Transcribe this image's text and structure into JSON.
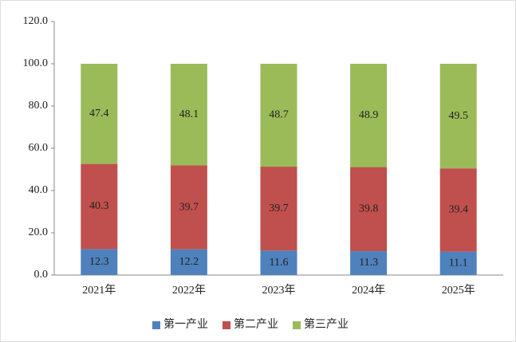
{
  "chart_data": {
    "type": "stacked-bar",
    "categories": [
      "2021年",
      "2022年",
      "2023年",
      "2024年",
      "2025年"
    ],
    "series": [
      {
        "name": "第一产业",
        "color": "#4f81bd",
        "values": [
          12.3,
          12.2,
          11.6,
          11.3,
          11.1
        ]
      },
      {
        "name": "第二产业",
        "color": "#c0504d",
        "values": [
          40.3,
          39.7,
          39.7,
          39.8,
          39.4
        ]
      },
      {
        "name": "第三产业",
        "color": "#9bbb59",
        "values": [
          47.4,
          48.1,
          48.7,
          48.9,
          49.5
        ]
      }
    ],
    "ylim": [
      0,
      120
    ],
    "yticks": [
      {
        "value": 0,
        "label": "0.0"
      },
      {
        "value": 20,
        "label": "20.0"
      },
      {
        "value": 40,
        "label": "40.0"
      },
      {
        "value": 60,
        "label": "60.0"
      },
      {
        "value": 80,
        "label": "80.0"
      },
      {
        "value": 100,
        "label": "100.0"
      },
      {
        "value": 120,
        "label": "120.0"
      }
    ],
    "legend": "bottom"
  }
}
